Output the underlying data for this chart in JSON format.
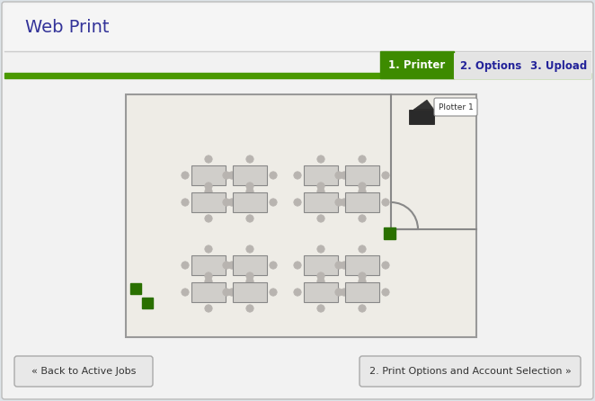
{
  "title": "Web Print",
  "tab_labels": [
    "1. Printer",
    "2. Options",
    "3. Upload"
  ],
  "btn_left": "« Back to Active Jobs",
  "btn_right": "2. Print Options and Account Selection »",
  "bg_outer": "#dde3e8",
  "bg_panel": "#f2f2f2",
  "bg_header": "#f5f5f5",
  "header_sep": "#cccccc",
  "tab_active_color": "#3d8b00",
  "tab_bar_color": "#4a9900",
  "tab_inactive_bg": "#e4e4e4",
  "tab_border": "#aaaaaa",
  "tab_text_active": "#ffffff",
  "tab_text_inactive": "#222299",
  "title_color": "#333399",
  "floor_bg": "#eeece6",
  "floor_border": "#999999",
  "wall_color": "#888888",
  "desk_color": "#d0ceca",
  "chair_color": "#b8b4b0",
  "printer_green": "#2a7000",
  "plotter_label": "Plotter 1",
  "btn_bg": "#e8e8e8",
  "btn_border": "#aaaaaa",
  "btn_text": "#333333"
}
